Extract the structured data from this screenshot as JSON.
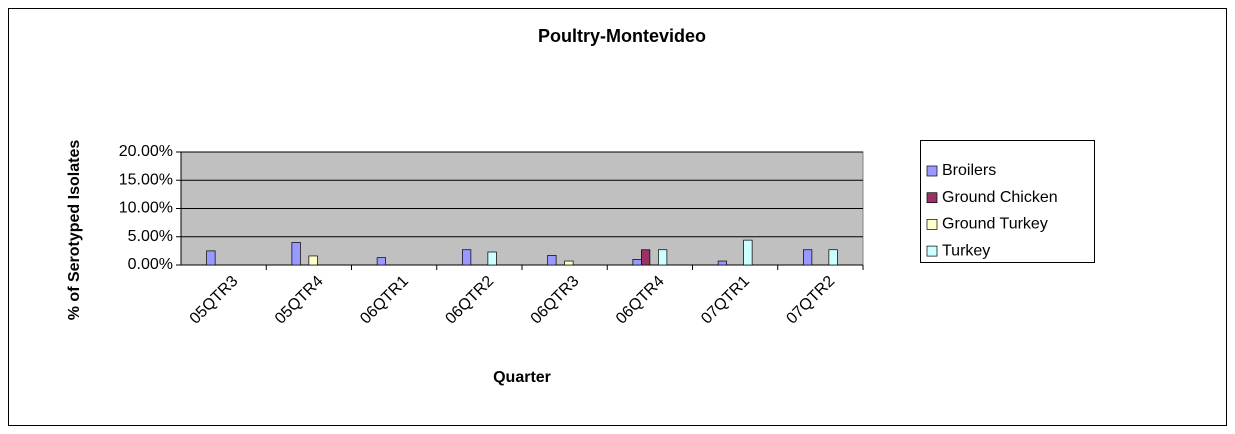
{
  "chart_data": {
    "type": "bar",
    "title": "Poultry-Montevideo",
    "x_label": "Quarter",
    "y_label": "% of Serotyped Isolates",
    "categories": [
      "05QTR3",
      "05QTR4",
      "06QTR1",
      "06QTR2",
      "06QTR3",
      "06QTR4",
      "07QTR1",
      "07QTR2"
    ],
    "series": [
      {
        "name": "Broilers",
        "color": "#9999ff",
        "values": [
          2.5,
          4.0,
          1.3,
          2.7,
          1.7,
          1.0,
          0.7,
          2.7
        ]
      },
      {
        "name": "Ground Chicken",
        "color": "#993366",
        "values": [
          null,
          null,
          null,
          null,
          null,
          2.7,
          null,
          null
        ]
      },
      {
        "name": "Ground Turkey",
        "color": "#ffffcc",
        "values": [
          null,
          1.6,
          null,
          null,
          0.7,
          null,
          null,
          null
        ]
      },
      {
        "name": "Turkey",
        "color": "#ccffff",
        "values": [
          null,
          null,
          null,
          2.3,
          null,
          2.7,
          4.4,
          2.7
        ]
      }
    ],
    "ylim": [
      0,
      20
    ],
    "yticks": [
      {
        "value": 0,
        "label": "0.00%"
      },
      {
        "value": 5,
        "label": "5.00%"
      },
      {
        "value": 10,
        "label": "10.00%"
      },
      {
        "value": 15,
        "label": "15.00%"
      },
      {
        "value": 20,
        "label": "20.00%"
      }
    ],
    "grid": true,
    "legend": "right",
    "plot_background": "#c0c0c0"
  }
}
